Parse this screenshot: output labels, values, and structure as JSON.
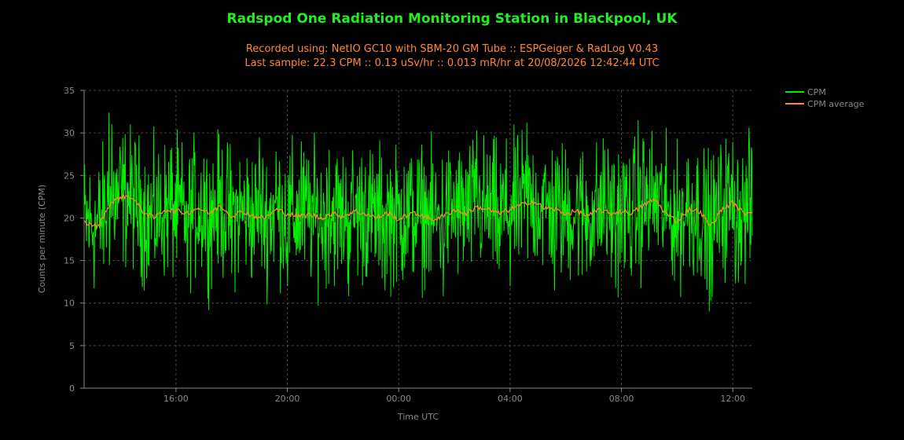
{
  "chart_data": {
    "type": "line",
    "title": "Radspod One Radiation Monitoring Station in Blackpool, UK",
    "subtitle_1": "Recorded using: NetIO GC10 with SBM-20 GM Tube :: ESPGeiger & RadLog V0.43",
    "subtitle_2": "Last sample: 22.3 CPM :: 0.13 uSv/hr :: 0.013 mR/hr at 20/08/2026 12:42:44 UTC",
    "xlabel": "Time UTC",
    "ylabel": "Counts per minute (CPM)",
    "ylim": [
      0,
      35
    ],
    "yticks": [
      "0",
      "5",
      "10",
      "15",
      "20",
      "25",
      "30",
      "35"
    ],
    "xlim_hours": [
      12.7,
      36.7
    ],
    "xticks": [
      {
        "label": "16:00",
        "hour": 16
      },
      {
        "label": "20:00",
        "hour": 20
      },
      {
        "label": "00:00",
        "hour": 24
      },
      {
        "label": "04:00",
        "hour": 28
      },
      {
        "label": "08:00",
        "hour": 32
      },
      {
        "label": "12:00",
        "hour": 36
      }
    ],
    "grid": true,
    "legend_position": "top-right",
    "series": [
      {
        "name": "CPM",
        "color": "#00ee00"
      },
      {
        "name": "CPM average",
        "color": "#ff8833"
      }
    ],
    "cpm_average_anchors": [
      [
        12.7,
        19.5
      ],
      [
        13.2,
        19.0
      ],
      [
        13.6,
        21.5
      ],
      [
        14.0,
        22.5
      ],
      [
        14.4,
        22.5
      ],
      [
        14.8,
        20.8
      ],
      [
        15.2,
        20.0
      ],
      [
        15.6,
        21.0
      ],
      [
        16.0,
        20.8
      ],
      [
        16.4,
        20.6
      ],
      [
        16.8,
        21.2
      ],
      [
        17.2,
        20.5
      ],
      [
        17.6,
        21.5
      ],
      [
        18.0,
        20.2
      ],
      [
        18.4,
        20.8
      ],
      [
        18.8,
        20.2
      ],
      [
        19.2,
        20.0
      ],
      [
        19.6,
        21.0
      ],
      [
        20.0,
        20.5
      ],
      [
        20.4,
        20.2
      ],
      [
        20.8,
        20.4
      ],
      [
        21.2,
        20.0
      ],
      [
        21.6,
        20.5
      ],
      [
        22.0,
        20.2
      ],
      [
        22.4,
        20.8
      ],
      [
        22.8,
        20.5
      ],
      [
        23.2,
        20.0
      ],
      [
        23.6,
        20.6
      ],
      [
        24.0,
        19.8
      ],
      [
        24.4,
        20.5
      ],
      [
        24.8,
        20.4
      ],
      [
        25.2,
        19.8
      ],
      [
        25.6,
        20.2
      ],
      [
        26.0,
        21.0
      ],
      [
        26.4,
        20.5
      ],
      [
        26.8,
        21.3
      ],
      [
        27.2,
        21.0
      ],
      [
        27.6,
        20.5
      ],
      [
        28.0,
        21.0
      ],
      [
        28.4,
        21.5
      ],
      [
        28.8,
        22.0
      ],
      [
        29.2,
        21.2
      ],
      [
        29.6,
        21.0
      ],
      [
        30.0,
        20.5
      ],
      [
        30.4,
        20.8
      ],
      [
        30.8,
        20.2
      ],
      [
        31.2,
        21.0
      ],
      [
        31.6,
        20.5
      ],
      [
        32.0,
        20.8
      ],
      [
        32.4,
        20.6
      ],
      [
        32.8,
        21.5
      ],
      [
        33.2,
        22.2
      ],
      [
        33.6,
        20.5
      ],
      [
        34.0,
        19.6
      ],
      [
        34.4,
        21.0
      ],
      [
        34.8,
        20.8
      ],
      [
        35.2,
        19.0
      ],
      [
        35.6,
        21.0
      ],
      [
        36.0,
        21.8
      ],
      [
        36.4,
        20.5
      ],
      [
        36.7,
        20.8
      ]
    ],
    "cpm_spikes": [
      [
        13.6,
        32.4
      ],
      [
        13.7,
        31.0
      ],
      [
        14.0,
        27.0
      ],
      [
        15.0,
        14.5
      ],
      [
        15.8,
        28.0
      ],
      [
        16.4,
        13.0
      ],
      [
        17.0,
        27.0
      ],
      [
        18.0,
        13.5
      ],
      [
        19.0,
        29.5
      ],
      [
        19.6,
        27.8
      ],
      [
        20.0,
        12.0
      ],
      [
        20.5,
        29.0
      ],
      [
        21.5,
        28.0
      ],
      [
        22.2,
        10.8
      ],
      [
        22.8,
        26.0
      ],
      [
        23.5,
        11.5
      ],
      [
        24.2,
        26.0
      ],
      [
        25.0,
        14.0
      ],
      [
        25.6,
        10.8
      ],
      [
        26.8,
        30.3
      ],
      [
        27.6,
        14.0
      ],
      [
        28.0,
        12.0
      ],
      [
        28.6,
        31.2
      ],
      [
        29.6,
        11.5
      ],
      [
        30.6,
        13.3
      ],
      [
        31.4,
        28.0
      ],
      [
        31.8,
        11.8
      ],
      [
        32.6,
        31.5
      ],
      [
        32.8,
        29.0
      ],
      [
        33.8,
        15.0
      ],
      [
        34.4,
        27.0
      ],
      [
        35.0,
        12.8
      ],
      [
        35.2,
        10.3
      ],
      [
        35.8,
        26.2
      ],
      [
        36.6,
        28.7
      ],
      [
        36.1,
        12.3
      ]
    ],
    "cpm_noise_amplitude": 4.0
  }
}
